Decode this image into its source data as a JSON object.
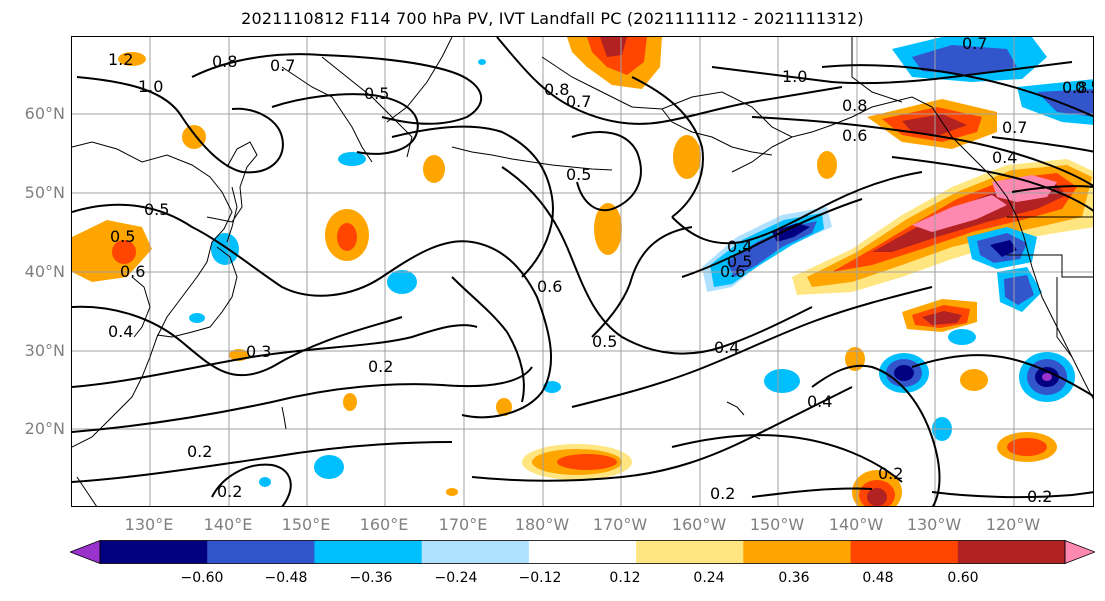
{
  "title": "2021110812 F114 700 hPa PV, IVT Landfall PC (2021111112 - 2021111312)",
  "map": {
    "lat_labels": [
      "60°N",
      "50°N",
      "40°N",
      "30°N",
      "20°N"
    ],
    "lon_labels": [
      "130°E",
      "140°E",
      "150°E",
      "160°E",
      "170°E",
      "180°W",
      "170°W",
      "160°W",
      "150°W",
      "140°W",
      "130°W",
      "120°W"
    ],
    "contour_labels": [
      "1.2",
      "0.8",
      "0.7",
      "1.0",
      "0.5",
      "0.8",
      "0.7",
      "1.0",
      "0.8",
      "0.6",
      "0.7",
      "0.4",
      "0.7",
      "0.8",
      "0.5",
      "0.5",
      "0.5",
      "0.6",
      "0.4",
      "0.5",
      "0.6",
      "0.6",
      "0.5",
      "0.4",
      "0.4",
      "0.3",
      "0.2",
      "0.4",
      "0.2",
      "0.2",
      "0.2",
      "0.2",
      "0.2",
      "0.5"
    ],
    "colors": {
      "contour": "#000000",
      "grid": "#a0a0a0",
      "coast": "#000000"
    }
  },
  "colorbar": {
    "tick_labels": [
      "−0.60",
      "−0.48",
      "−0.36",
      "−0.24",
      "−0.12",
      "0.12",
      "0.24",
      "0.36",
      "0.48",
      "0.60"
    ],
    "colors": [
      "#9933cc",
      "#000080",
      "#3355cc",
      "#00bfff",
      "#b0e0ff",
      "#ffffff",
      "#ffe680",
      "#ffa500",
      "#ff4500",
      "#b22222",
      "#ff88b0"
    ]
  }
}
